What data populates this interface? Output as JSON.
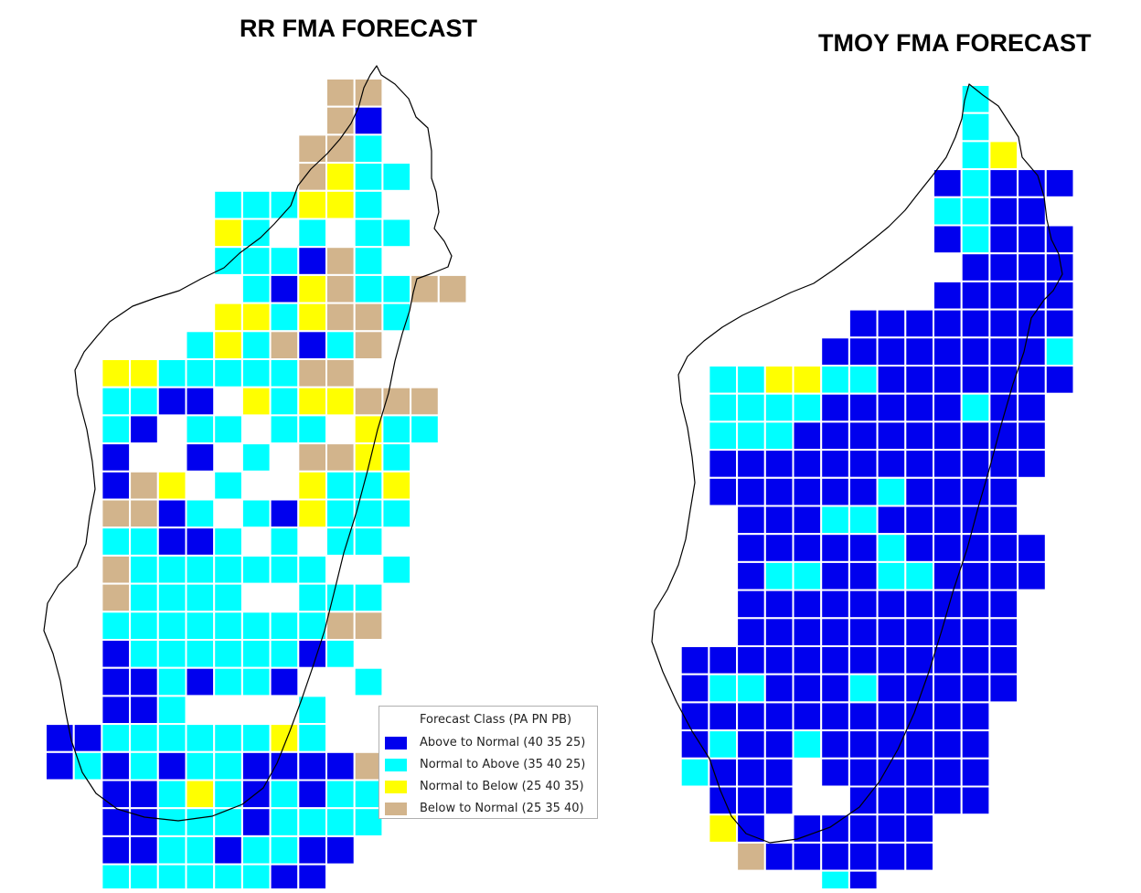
{
  "maps": [
    {
      "title": "RR FMA FORECAST",
      "grid": {
        "col0": 50,
        "row0": 86,
        "cell": 30.7,
        "rows": [
          "..........TT..",
          "..........TA..",
          ".........TTC..",
          ".........TYCC.",
          "......CCCYYC..",
          "......YC.C.CC.",
          "......CCCATC..",
          ".......CAYTCCTT",
          "......YYCYTTC..",
          ".....CYCTACT..",
          "..YYCCCCCTT...",
          "..CCAA.YCYYTTT",
          "..CA.CC.CC.YCC",
          "..A..A.C.TTYC..",
          "..ATY.C..YCCY..",
          "..TTAC.CAYCCC..",
          "..CCAAC.C.CC...",
          "..TCCCCCCC..C..",
          "..TCCCC..CCC...",
          "..CCCCCCCCTT...",
          "..ACCCCCCAC....",
          "..AACACCA..C...",
          "..AAC....C.....",
          "AACCCCCCYC..T..",
          "ACACACCAAAAT....",
          "..AACYCACACC....",
          "..AACCCACCCC....",
          "..AACCACCAA.....",
          "..CCCCCCAA......",
          "...YC..........."
        ]
      },
      "outline": [
        [
          412,
          72
        ],
        [
          417,
          82
        ],
        [
          432,
          92
        ],
        [
          447,
          108
        ],
        [
          455,
          128
        ],
        [
          468,
          140
        ],
        [
          472,
          165
        ],
        [
          472,
          195
        ],
        [
          477,
          210
        ],
        [
          480,
          232
        ],
        [
          475,
          250
        ],
        [
          486,
          264
        ],
        [
          494,
          280
        ],
        [
          490,
          292
        ],
        [
          470,
          300
        ],
        [
          456,
          305
        ],
        [
          452,
          320
        ],
        [
          448,
          340
        ],
        [
          440,
          365
        ],
        [
          432,
          395
        ],
        [
          425,
          430
        ],
        [
          413,
          470
        ],
        [
          402,
          515
        ],
        [
          390,
          560
        ],
        [
          376,
          605
        ],
        [
          365,
          650
        ],
        [
          355,
          690
        ],
        [
          342,
          730
        ],
        [
          330,
          765
        ],
        [
          317,
          800
        ],
        [
          303,
          835
        ],
        [
          288,
          862
        ],
        [
          265,
          880
        ],
        [
          232,
          893
        ],
        [
          195,
          898
        ],
        [
          158,
          894
        ],
        [
          128,
          885
        ],
        [
          105,
          868
        ],
        [
          90,
          845
        ],
        [
          78,
          810
        ],
        [
          72,
          780
        ],
        [
          66,
          745
        ],
        [
          58,
          715
        ],
        [
          48,
          690
        ],
        [
          52,
          660
        ],
        [
          64,
          640
        ],
        [
          84,
          620
        ],
        [
          94,
          595
        ],
        [
          98,
          565
        ],
        [
          104,
          535
        ],
        [
          101,
          505
        ],
        [
          95,
          470
        ],
        [
          85,
          432
        ],
        [
          82,
          405
        ],
        [
          92,
          385
        ],
        [
          106,
          368
        ],
        [
          120,
          352
        ],
        [
          145,
          335
        ],
        [
          170,
          326
        ],
        [
          196,
          318
        ],
        [
          220,
          305
        ],
        [
          245,
          293
        ],
        [
          262,
          277
        ],
        [
          285,
          260
        ],
        [
          300,
          245
        ],
        [
          318,
          225
        ],
        [
          326,
          203
        ],
        [
          340,
          185
        ],
        [
          358,
          168
        ],
        [
          372,
          152
        ],
        [
          384,
          135
        ],
        [
          392,
          118
        ],
        [
          398,
          96
        ],
        [
          405,
          82
        ]
      ],
      "legend": {
        "title": "Forecast Class  (PA PN PB)",
        "items": [
          {
            "key": "A",
            "label": "Above to Normal (40 35 25)"
          },
          {
            "key": "C",
            "label": "Normal to Above (35 40 25)"
          },
          {
            "key": "Y",
            "label": "Normal to Below (25 40 35)"
          },
          {
            "key": "T",
            "label": "Below to Normal (25 35 40)"
          }
        ]
      }
    },
    {
      "title": "TMOY FMA FORECAST",
      "grid": {
        "col0": 714,
        "row0": 93,
        "cell": 30.7,
        "rows": [
          "...........C....",
          "...........C....",
          "...........CY...",
          "..........ACAAA.",
          "..........CCAA..",
          "..........ACAAA.",
          "...........AAAA.",
          "..........AAAAA.",
          ".......AAAAAAAA.",
          "......AAAAAAAAC.",
          "..CCYYCCAAAAAAA.",
          "..CCCCAAAAACAA..",
          "..CCCAAAAAAAAA..",
          "..AAAAAAAAAAAA..",
          "..AAAAAACAAAA...",
          "...AAACCAAAAA...",
          "...AAAAACAAAAA..",
          "...ACCAACCAAAA..",
          "...AAAAAAAAAA...",
          "...AAAAAAAAAA...",
          ".AAAAAAAAAAAA...",
          ".ACCAAACAAAAA...",
          ".AAAAAAAAAAA....",
          ".ACAACAAAAAA....",
          ".CAAA.AAAAAA....",
          "..AAA..AAAAA....",
          "..YA.AAAAA......",
          "...TAAAAAA......",
          "......CA........",
          "...AA..........."
        ]
      },
      "outline": [
        [
          1060,
          92
        ],
        [
          1075,
          104
        ],
        [
          1092,
          116
        ],
        [
          1103,
          133
        ],
        [
          1114,
          150
        ],
        [
          1118,
          172
        ],
        [
          1135,
          192
        ],
        [
          1142,
          215
        ],
        [
          1145,
          240
        ],
        [
          1150,
          262
        ],
        [
          1158,
          278
        ],
        [
          1162,
          300
        ],
        [
          1152,
          318
        ],
        [
          1142,
          328
        ],
        [
          1128,
          348
        ],
        [
          1120,
          385
        ],
        [
          1108,
          420
        ],
        [
          1095,
          465
        ],
        [
          1083,
          510
        ],
        [
          1070,
          555
        ],
        [
          1058,
          600
        ],
        [
          1043,
          645
        ],
        [
          1030,
          690
        ],
        [
          1016,
          735
        ],
        [
          1000,
          780
        ],
        [
          982,
          820
        ],
        [
          962,
          855
        ],
        [
          940,
          883
        ],
        [
          908,
          905
        ],
        [
          872,
          918
        ],
        [
          842,
          922
        ],
        [
          816,
          912
        ],
        [
          800,
          893
        ],
        [
          788,
          865
        ],
        [
          776,
          830
        ],
        [
          757,
          800
        ],
        [
          740,
          768
        ],
        [
          725,
          735
        ],
        [
          713,
          702
        ],
        [
          716,
          668
        ],
        [
          730,
          645
        ],
        [
          742,
          618
        ],
        [
          750,
          590
        ],
        [
          755,
          558
        ],
        [
          760,
          528
        ],
        [
          757,
          500
        ],
        [
          752,
          468
        ],
        [
          745,
          440
        ],
        [
          742,
          410
        ],
        [
          752,
          390
        ],
        [
          770,
          373
        ],
        [
          790,
          358
        ],
        [
          812,
          345
        ],
        [
          840,
          332
        ],
        [
          865,
          320
        ],
        [
          890,
          310
        ],
        [
          912,
          295
        ],
        [
          932,
          280
        ],
        [
          955,
          262
        ],
        [
          972,
          248
        ],
        [
          990,
          230
        ],
        [
          1004,
          212
        ],
        [
          1020,
          192
        ],
        [
          1035,
          172
        ],
        [
          1045,
          150
        ],
        [
          1052,
          130
        ],
        [
          1055,
          110
        ]
      ]
    }
  ],
  "colors": {
    "A": "#0000ee",
    "C": "#00ffff",
    "Y": "#ffff00",
    "T": "#d2b48c",
    "grid_line": "#ffffff",
    "outline": "#000000"
  }
}
